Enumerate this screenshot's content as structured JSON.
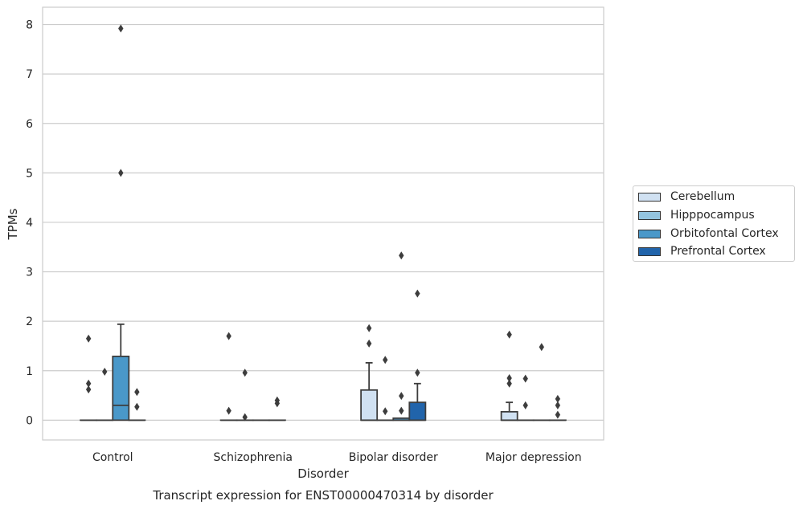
{
  "chart_data": {
    "type": "box",
    "title": "Transcript expression for ENST00000470314 by disorder",
    "xlabel": "Disorder",
    "ylabel": "TPMs",
    "ylim": [
      -0.4,
      8.35
    ],
    "yticks": [
      0,
      1,
      2,
      3,
      4,
      5,
      6,
      7,
      8
    ],
    "categories": [
      "Control",
      "Schizophrenia",
      "Bipolar disorder",
      "Major depression"
    ],
    "grid": "horizontal",
    "legend_position": "right",
    "series": [
      {
        "name": "Cerebellum",
        "color": "#d0e1f2",
        "boxes": [
          {
            "q1": 0,
            "median": 0,
            "q3": 0,
            "whisker_low": 0,
            "whisker_high": 0,
            "outliers": [
              0.62,
              0.74,
              1.65
            ]
          },
          {
            "q1": 0,
            "median": 0,
            "q3": 0,
            "whisker_low": 0,
            "whisker_high": 0,
            "outliers": [
              0.19,
              1.7
            ]
          },
          {
            "q1": 0,
            "median": 0,
            "q3": 0.61,
            "whisker_low": 0,
            "whisker_high": 1.16,
            "outliers": [
              1.55,
              1.86
            ]
          },
          {
            "q1": 0,
            "median": 0,
            "q3": 0.17,
            "whisker_low": 0,
            "whisker_high": 0.36,
            "outliers": [
              0.74,
              0.85,
              1.73
            ]
          }
        ]
      },
      {
        "name": "Hipppocampus",
        "color": "#94c4df",
        "boxes": [
          {
            "q1": 0,
            "median": 0,
            "q3": 0,
            "whisker_low": 0,
            "whisker_high": 0,
            "outliers": [
              0.98
            ]
          },
          {
            "q1": 0,
            "median": 0,
            "q3": 0,
            "whisker_low": 0,
            "whisker_high": 0,
            "outliers": [
              0.06,
              0.96
            ]
          },
          {
            "q1": 0,
            "median": 0,
            "q3": 0,
            "whisker_low": 0,
            "whisker_high": 0,
            "outliers": [
              0.18,
              1.22
            ]
          },
          {
            "q1": 0,
            "median": 0,
            "q3": 0,
            "whisker_low": 0,
            "whisker_high": 0,
            "outliers": [
              0.3,
              0.84
            ]
          }
        ]
      },
      {
        "name": "Orbitofontal Cortex",
        "color": "#4a98c9",
        "boxes": [
          {
            "q1": 0,
            "median": 0.3,
            "q3": 1.29,
            "whisker_low": 0,
            "whisker_high": 1.94,
            "outliers": [
              5.0,
              7.92
            ]
          },
          {
            "q1": 0,
            "median": 0,
            "q3": 0,
            "whisker_low": 0,
            "whisker_high": 0,
            "outliers": []
          },
          {
            "q1": 0,
            "median": 0,
            "q3": 0.04,
            "whisker_low": 0,
            "whisker_high": 0.04,
            "outliers": [
              0.19,
              0.49,
              3.33
            ]
          },
          {
            "q1": 0,
            "median": 0,
            "q3": 0,
            "whisker_low": 0,
            "whisker_high": 0,
            "outliers": [
              1.48
            ]
          }
        ]
      },
      {
        "name": "Prefrontal Cortex",
        "color": "#2164ab",
        "boxes": [
          {
            "q1": 0,
            "median": 0,
            "q3": 0,
            "whisker_low": 0,
            "whisker_high": 0,
            "outliers": [
              0.27,
              0.57
            ]
          },
          {
            "q1": 0,
            "median": 0,
            "q3": 0,
            "whisker_low": 0,
            "whisker_high": 0,
            "outliers": [
              0.34,
              0.4
            ]
          },
          {
            "q1": 0,
            "median": 0,
            "q3": 0.36,
            "whisker_low": 0,
            "whisker_high": 0.74,
            "outliers": [
              0.96,
              2.56
            ]
          },
          {
            "q1": 0,
            "median": 0,
            "q3": 0,
            "whisker_low": 0,
            "whisker_high": 0,
            "outliers": [
              0.11,
              0.3,
              0.43
            ]
          }
        ]
      }
    ]
  }
}
